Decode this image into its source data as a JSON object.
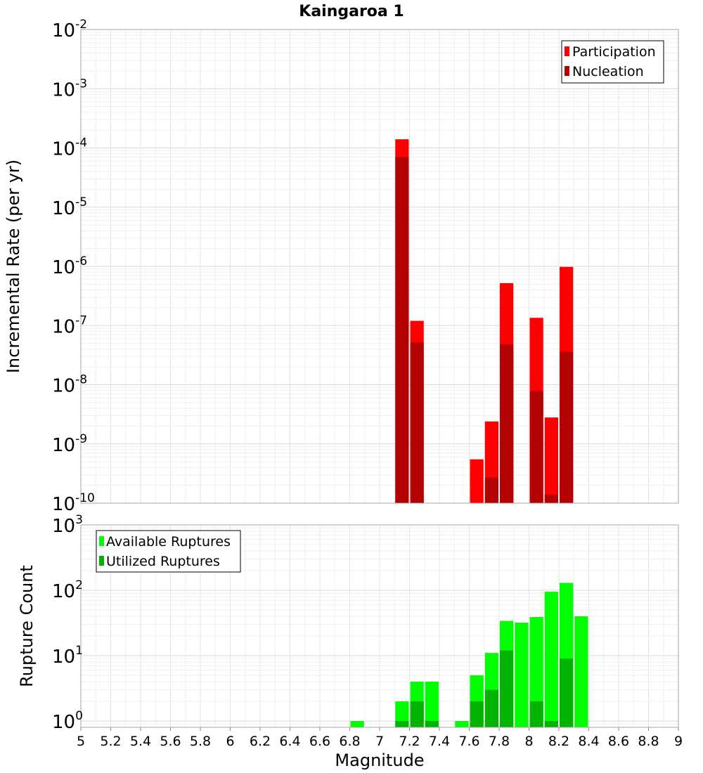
{
  "chart_data": [
    {
      "type": "bar",
      "title": "Kaingaroa 1",
      "xlabel": "",
      "ylabel": "Incremental Rate (per yr)",
      "yscale": "log",
      "xlim": [
        5,
        9
      ],
      "ylim": [
        1e-10,
        0.01
      ],
      "ytick_labels": [
        {
          "base": "10",
          "exp": "-10"
        },
        {
          "base": "10",
          "exp": "-9"
        },
        {
          "base": "10",
          "exp": "-8"
        },
        {
          "base": "10",
          "exp": "-7"
        },
        {
          "base": "10",
          "exp": "-6"
        },
        {
          "base": "10",
          "exp": "-5"
        },
        {
          "base": "10",
          "exp": "-4"
        },
        {
          "base": "10",
          "exp": "-3"
        },
        {
          "base": "10",
          "exp": "-2"
        }
      ],
      "grid": true,
      "legend_position": "top-right",
      "bar_width": 0.1,
      "series": [
        {
          "name": "Participation",
          "color": "#ff0000",
          "points": [
            {
              "x": 7.15,
              "y": 0.00014
            },
            {
              "x": 7.25,
              "y": 1.2e-07
            },
            {
              "x": 7.65,
              "y": 5.5e-10
            },
            {
              "x": 7.75,
              "y": 2.4e-09
            },
            {
              "x": 7.85,
              "y": 5.2e-07
            },
            {
              "x": 8.05,
              "y": 1.35e-07
            },
            {
              "x": 8.15,
              "y": 2.8e-09
            },
            {
              "x": 8.25,
              "y": 9.8e-07
            }
          ]
        },
        {
          "name": "Nucleation",
          "color": "#b30000",
          "points": [
            {
              "x": 7.15,
              "y": 7e-05
            },
            {
              "x": 7.25,
              "y": 5.2e-08
            },
            {
              "x": 7.75,
              "y": 2.7e-10
            },
            {
              "x": 7.85,
              "y": 4.8e-08
            },
            {
              "x": 8.05,
              "y": 7.8e-09
            },
            {
              "x": 8.15,
              "y": 1.4e-10
            },
            {
              "x": 8.25,
              "y": 3.6e-08
            }
          ]
        }
      ]
    },
    {
      "type": "bar",
      "xlabel": "Magnitude",
      "ylabel": "Rupture Count",
      "yscale": "log",
      "xlim": [
        5,
        9
      ],
      "ylim": [
        0.8,
        1000
      ],
      "x_tick_labels": [
        "5",
        "5.2",
        "5.4",
        "5.6",
        "5.8",
        "6",
        "6.2",
        "6.4",
        "6.6",
        "6.8",
        "7",
        "7.2",
        "7.4",
        "7.6",
        "7.8",
        "8",
        "8.2",
        "8.4",
        "8.6",
        "8.8",
        "9"
      ],
      "ytick_labels": [
        {
          "base": "10",
          "exp": "0"
        },
        {
          "base": "10",
          "exp": "1"
        },
        {
          "base": "10",
          "exp": "2"
        },
        {
          "base": "10",
          "exp": "3"
        }
      ],
      "grid": true,
      "legend_position": "top-left",
      "bar_width": 0.1,
      "series": [
        {
          "name": "Available Ruptures",
          "color": "#00ff00",
          "points": [
            {
              "x": 6.85,
              "y": 1
            },
            {
              "x": 7.15,
              "y": 2
            },
            {
              "x": 7.25,
              "y": 4
            },
            {
              "x": 7.35,
              "y": 4
            },
            {
              "x": 7.55,
              "y": 1
            },
            {
              "x": 7.65,
              "y": 5
            },
            {
              "x": 7.75,
              "y": 11
            },
            {
              "x": 7.85,
              "y": 34
            },
            {
              "x": 7.95,
              "y": 32
            },
            {
              "x": 8.05,
              "y": 39
            },
            {
              "x": 8.15,
              "y": 95
            },
            {
              "x": 8.25,
              "y": 130
            },
            {
              "x": 8.35,
              "y": 40
            }
          ]
        },
        {
          "name": "Utilized Ruptures",
          "color": "#00b300",
          "points": [
            {
              "x": 7.15,
              "y": 1
            },
            {
              "x": 7.25,
              "y": 2
            },
            {
              "x": 7.35,
              "y": 1
            },
            {
              "x": 7.65,
              "y": 2
            },
            {
              "x": 7.75,
              "y": 3
            },
            {
              "x": 7.85,
              "y": 12
            },
            {
              "x": 8.05,
              "y": 2
            },
            {
              "x": 8.15,
              "y": 1
            },
            {
              "x": 8.25,
              "y": 9
            }
          ]
        }
      ]
    }
  ]
}
